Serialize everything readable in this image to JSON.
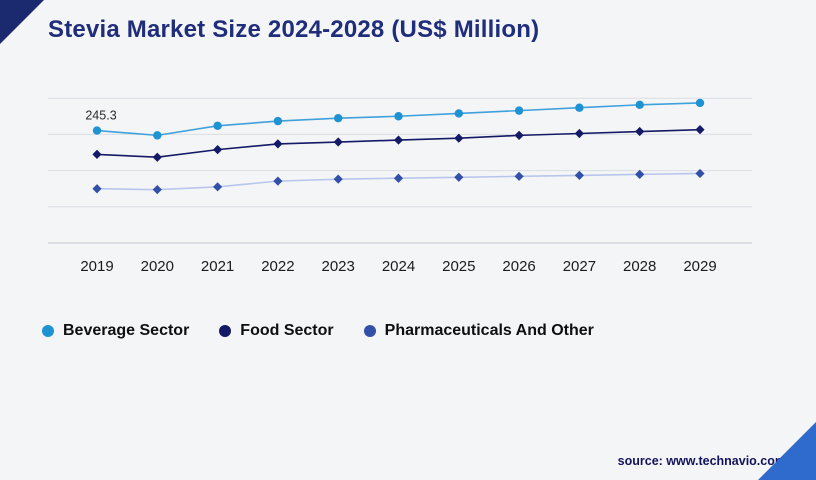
{
  "page": {
    "source": "source: www.technavio.com"
  },
  "chart_data": {
    "type": "line",
    "title": "Stevia Market Size 2024-2028 (US$ Million)",
    "categories": [
      "2019",
      "2020",
      "2021",
      "2022",
      "2023",
      "2024",
      "2025",
      "2026",
      "2027",
      "2028",
      "2029"
    ],
    "series": [
      {
        "name": "Beverage Sector",
        "marker": "circle",
        "line_color": "#3fa0dc",
        "marker_color": "#1f93d2",
        "values": [
          245.3,
          238.7,
          251.9,
          258.4,
          262.4,
          265.1,
          269.0,
          272.9,
          276.9,
          280.9,
          283.5
        ]
      },
      {
        "name": "Food Sector",
        "marker": "diamond",
        "line_color": "#141a66",
        "marker_color": "#141a66",
        "values": [
          212.4,
          208.5,
          219.0,
          226.9,
          229.5,
          232.2,
          234.8,
          238.7,
          241.3,
          244.0,
          246.6
        ]
      },
      {
        "name": "Pharmaceuticals And Other",
        "marker": "diamond",
        "line_color": "#b9c6ec",
        "marker_color": "#3350a8",
        "values": [
          165.0,
          163.7,
          167.6,
          175.5,
          178.2,
          179.5,
          180.8,
          182.1,
          183.4,
          184.8,
          186.1
        ]
      }
    ],
    "annotation": {
      "text": "245.3",
      "series": 0,
      "index": 0
    },
    "ylim": [
      90,
      300
    ],
    "gridlines": [
      140,
      190,
      240,
      290
    ],
    "grid": "horizontal",
    "legend_position": "bottom-left",
    "xlabel": "",
    "ylabel": ""
  }
}
